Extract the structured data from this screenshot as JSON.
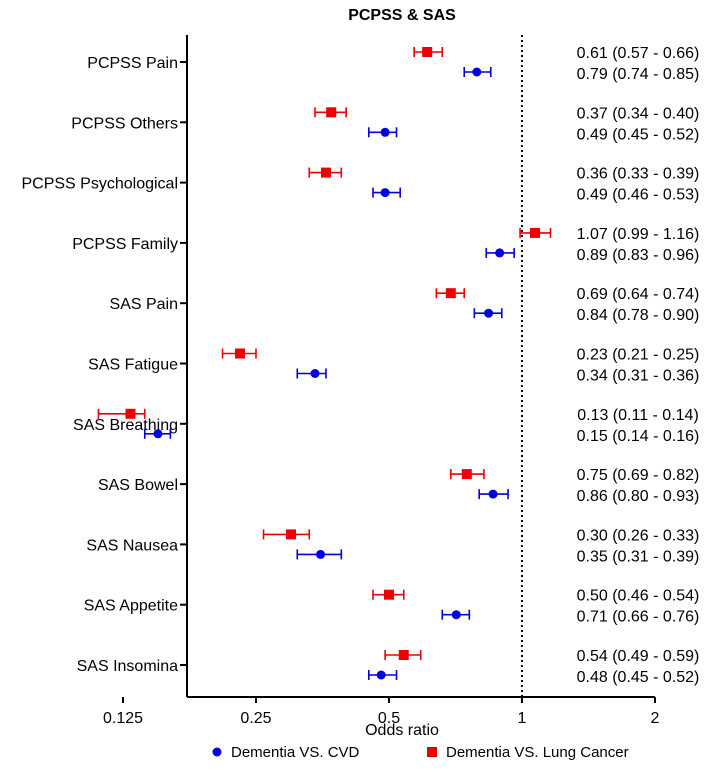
{
  "chart_data": {
    "type": "forest",
    "title": "PCPSS & SAS",
    "xlabel": "Odds ratio",
    "xscale": "log2",
    "xlim": [
      0.09,
      2
    ],
    "xticks": [
      {
        "value": 0.125,
        "label": "0.125"
      },
      {
        "value": 0.25,
        "label": "0.25"
      },
      {
        "value": 0.5,
        "label": "0.5"
      },
      {
        "value": 1,
        "label": "1"
      },
      {
        "value": 2,
        "label": "2"
      }
    ],
    "reference_line": 1,
    "series": [
      {
        "name": "Dementia VS. Lung Cancer",
        "marker": "square",
        "color": "#ee0000"
      },
      {
        "name": "Dementia VS. CVD",
        "marker": "circle",
        "color": "#0000dd"
      }
    ],
    "legend_order": [
      "Dementia VS. CVD",
      "Dementia VS. Lung Cancer"
    ],
    "rows": [
      {
        "label": "PCPSS Pain",
        "lung": {
          "or": 0.61,
          "lo": 0.57,
          "hi": 0.66,
          "text": "0.61 (0.57 - 0.66)"
        },
        "cvd": {
          "or": 0.79,
          "lo": 0.74,
          "hi": 0.85,
          "text": "0.79 (0.74 - 0.85)"
        }
      },
      {
        "label": "PCPSS Others",
        "lung": {
          "or": 0.37,
          "lo": 0.34,
          "hi": 0.4,
          "text": "0.37 (0.34 - 0.40)"
        },
        "cvd": {
          "or": 0.49,
          "lo": 0.45,
          "hi": 0.52,
          "text": "0.49 (0.45 - 0.52)"
        }
      },
      {
        "label": "PCPSS Psychological",
        "lung": {
          "or": 0.36,
          "lo": 0.33,
          "hi": 0.39,
          "text": "0.36 (0.33 - 0.39)"
        },
        "cvd": {
          "or": 0.49,
          "lo": 0.46,
          "hi": 0.53,
          "text": "0.49 (0.46 - 0.53)"
        }
      },
      {
        "label": "PCPSS Family",
        "lung": {
          "or": 1.07,
          "lo": 0.99,
          "hi": 1.16,
          "text": "1.07 (0.99 - 1.16)"
        },
        "cvd": {
          "or": 0.89,
          "lo": 0.83,
          "hi": 0.96,
          "text": "0.89 (0.83 - 0.96)"
        }
      },
      {
        "label": "SAS Pain",
        "lung": {
          "or": 0.69,
          "lo": 0.64,
          "hi": 0.74,
          "text": "0.69 (0.64 - 0.74)"
        },
        "cvd": {
          "or": 0.84,
          "lo": 0.78,
          "hi": 0.9,
          "text": "0.84 (0.78 - 0.90)"
        }
      },
      {
        "label": "SAS Fatigue",
        "lung": {
          "or": 0.23,
          "lo": 0.21,
          "hi": 0.25,
          "text": "0.23 (0.21 - 0.25)"
        },
        "cvd": {
          "or": 0.34,
          "lo": 0.31,
          "hi": 0.36,
          "text": "0.34 (0.31 - 0.36)"
        }
      },
      {
        "label": "SAS Breathing",
        "lung": {
          "or": 0.13,
          "lo": 0.11,
          "hi": 0.14,
          "text": "0.13 (0.11 - 0.14)"
        },
        "cvd": {
          "or": 0.15,
          "lo": 0.14,
          "hi": 0.16,
          "text": "0.15 (0.14 - 0.16)"
        }
      },
      {
        "label": "SAS Bowel",
        "lung": {
          "or": 0.75,
          "lo": 0.69,
          "hi": 0.82,
          "text": "0.75 (0.69 - 0.82)"
        },
        "cvd": {
          "or": 0.86,
          "lo": 0.8,
          "hi": 0.93,
          "text": "0.86 (0.80 - 0.93)"
        }
      },
      {
        "label": "SAS Nausea",
        "lung": {
          "or": 0.3,
          "lo": 0.26,
          "hi": 0.33,
          "text": "0.30 (0.26 - 0.33)"
        },
        "cvd": {
          "or": 0.35,
          "lo": 0.31,
          "hi": 0.39,
          "text": "0.35 (0.31 - 0.39)"
        }
      },
      {
        "label": "SAS Appetite",
        "lung": {
          "or": 0.5,
          "lo": 0.46,
          "hi": 0.54,
          "text": "0.50 (0.46 - 0.54)"
        },
        "cvd": {
          "or": 0.71,
          "lo": 0.66,
          "hi": 0.76,
          "text": "0.71 (0.66 - 0.76)"
        }
      },
      {
        "label": "SAS Insomina",
        "lung": {
          "or": 0.54,
          "lo": 0.49,
          "hi": 0.59,
          "text": "0.54 (0.49 - 0.59)"
        },
        "cvd": {
          "or": 0.48,
          "lo": 0.45,
          "hi": 0.52,
          "text": "0.48 (0.45 - 0.52)"
        }
      }
    ]
  }
}
